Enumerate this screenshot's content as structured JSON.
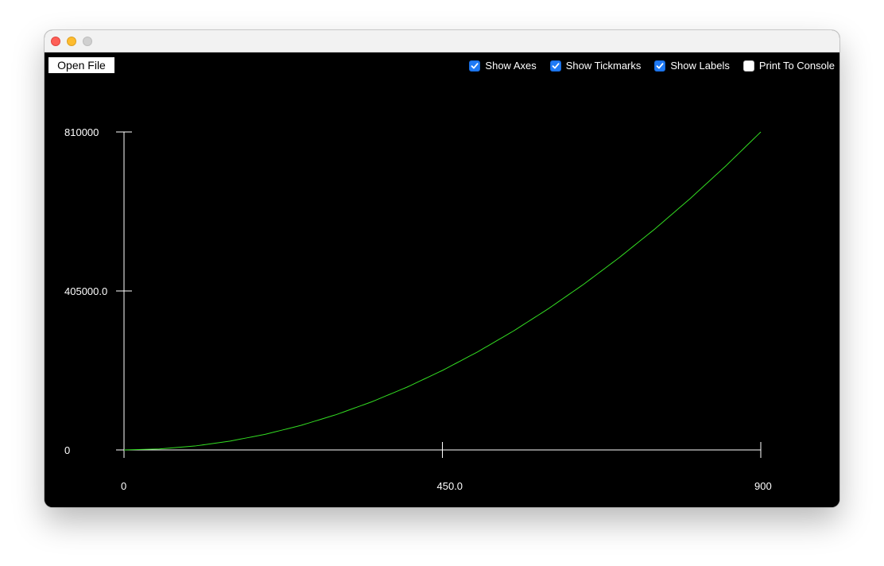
{
  "window": {
    "title": ""
  },
  "toolbar": {
    "open_file_label": "Open File"
  },
  "options": [
    {
      "label": "Show Axes",
      "checked": true
    },
    {
      "label": "Show Tickmarks",
      "checked": true
    },
    {
      "label": "Show Labels",
      "checked": true
    },
    {
      "label": "Print To Console",
      "checked": false
    }
  ],
  "colors": {
    "background": "#000000",
    "axes": "#ffffff",
    "curve": "#33dd22",
    "checkbox_accent": "#1f7af5"
  },
  "chart_data": {
    "type": "line",
    "title": "",
    "xlabel": "",
    "ylabel": "",
    "xlim": [
      0,
      900
    ],
    "ylim": [
      0,
      810000
    ],
    "x_ticks": [
      0,
      450,
      900
    ],
    "x_tick_labels": [
      "0",
      "450.0",
      "900"
    ],
    "y_ticks": [
      0,
      405000,
      810000
    ],
    "y_tick_labels": [
      "0",
      "405000.0",
      "810000"
    ],
    "grid": false,
    "series": [
      {
        "x": [
          0,
          50,
          100,
          150,
          200,
          250,
          300,
          350,
          400,
          450,
          500,
          550,
          600,
          650,
          700,
          750,
          800,
          850,
          900
        ],
        "y": [
          0,
          2500,
          10000,
          22500,
          40000,
          62500,
          90000,
          122500,
          160000,
          202500,
          250000,
          302500,
          360000,
          422500,
          490000,
          562500,
          640000,
          722500,
          810000
        ]
      }
    ]
  }
}
